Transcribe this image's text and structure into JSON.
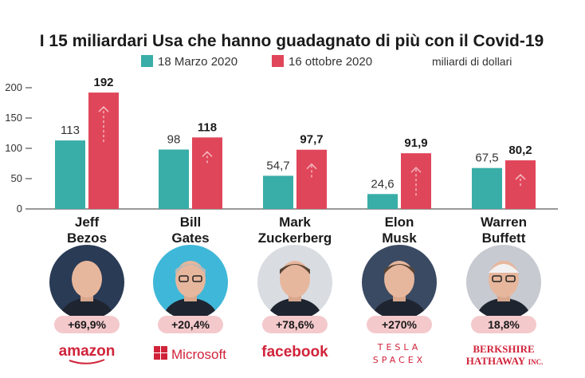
{
  "title": "I 15 miliardari Usa che hanno guadagnato di più con il Covid-19",
  "unit_note": "miliardi di dollari",
  "colors": {
    "series1": "#39ada7",
    "series2": "#e0465a",
    "pct_badge": "#f4c9cc",
    "brand": "#d0233a"
  },
  "chart_data": {
    "type": "bar",
    "title": "I 15 miliardari Usa che hanno guadagnato di più con il Covid-19",
    "ylabel": "miliardi di dollari",
    "xlabel": "",
    "ylim": [
      0,
      200
    ],
    "yticks": [
      0,
      50,
      100,
      150,
      200
    ],
    "grid": false,
    "legend": "top",
    "categories": [
      "Jeff Bezos",
      "Bill Gates",
      "Mark Zuckerberg",
      "Elon Musk",
      "Warren Buffett"
    ],
    "series": [
      {
        "name": "18 Marzo 2020",
        "values": [
          113,
          98,
          54.7,
          24.6,
          67.5
        ],
        "labels": [
          "113",
          "98",
          "54,7",
          "24,6",
          "67,5"
        ]
      },
      {
        "name": "16 ottobre 2020",
        "values": [
          192,
          118,
          97.7,
          91.9,
          80.2
        ],
        "labels": [
          "192",
          "118",
          "97,7",
          "91,9",
          "80,2"
        ]
      }
    ]
  },
  "people": [
    {
      "first": "Jeff",
      "last": "Bezos",
      "pct": "+69,9%",
      "company": "amazon",
      "photo": "portrait of Jeff Bezos",
      "bg": "#2a3b55"
    },
    {
      "first": "Bill",
      "last": "Gates",
      "pct": "+20,4%",
      "company": "Microsoft",
      "photo": "portrait of Bill Gates",
      "bg": "#3fb7d8"
    },
    {
      "first": "Mark",
      "last": "Zuckerberg",
      "pct": "+78,6%",
      "company": "facebook",
      "photo": "portrait of Mark Zuckerberg",
      "bg": "#d9dde2"
    },
    {
      "first": "Elon",
      "last": "Musk",
      "pct": "+270%",
      "company": "TESLA SPACEX",
      "photo": "portrait of Elon Musk",
      "bg": "#3a4a63"
    },
    {
      "first": "Warren",
      "last": "Buffett",
      "pct": "18,8%",
      "company": "BERKSHIRE HATHAWAY INC.",
      "photo": "portrait of Warren Buffett",
      "bg": "#c7cad0"
    }
  ],
  "brands": {
    "amazon": "amazon",
    "microsoft": "Microsoft",
    "facebook": "facebook",
    "tesla": "TESLA",
    "spacex": "SPACEX",
    "berkshire_line1": "BERKSHIRE",
    "berkshire_line2": "HATHAWAY",
    "berkshire_inc": "INC."
  }
}
